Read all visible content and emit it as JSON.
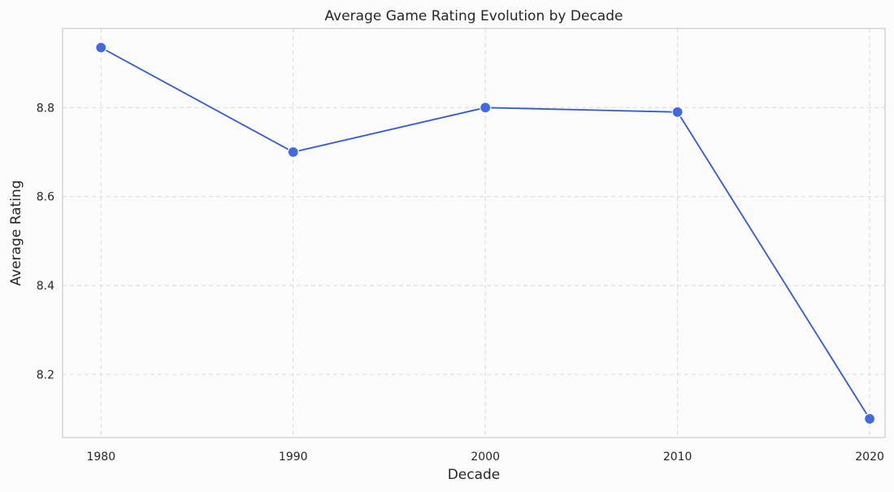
{
  "chart_data": {
    "type": "line",
    "title": "Average Game Rating Evolution by Decade",
    "xlabel": "Decade",
    "ylabel": "Average Rating",
    "x": [
      "1980",
      "1990",
      "2000",
      "2010",
      "2020"
    ],
    "x_values": [
      1980,
      1990,
      2000,
      2010,
      2020
    ],
    "xlim": [
      1978,
      2020.8
    ],
    "ylim": [
      8.058,
      8.978
    ],
    "yticks": [
      8.2,
      8.4,
      8.6,
      8.8
    ],
    "ytick_labels": [
      "8.2",
      "8.4",
      "8.6",
      "8.8"
    ],
    "grid": true,
    "grid_style": "dashed",
    "legend": "none",
    "series": [
      {
        "name": "Average Rating",
        "color": "#2f5bd8",
        "marker_color": "#4169e1",
        "values": [
          8.935,
          8.7,
          8.8,
          8.79,
          8.1
        ]
      }
    ]
  }
}
